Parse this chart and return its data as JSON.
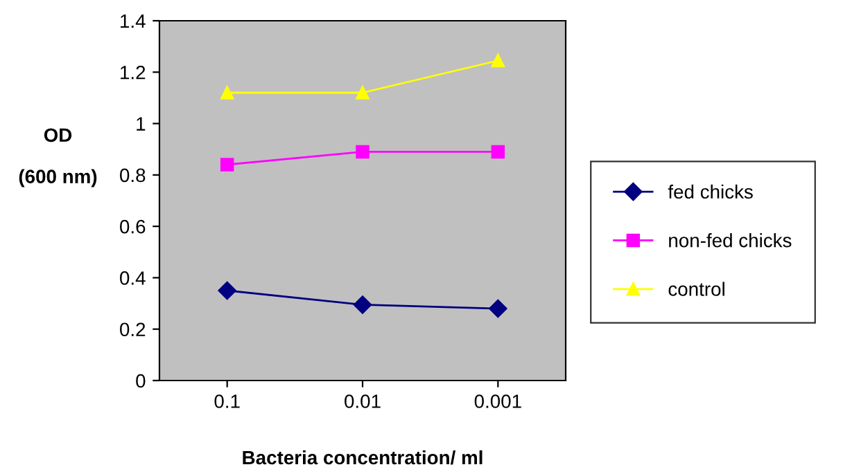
{
  "chart_data": {
    "type": "line",
    "xlabel": "Bacteria concentration/ ml",
    "ylabel": "OD\n\n(600 nm)",
    "categories": [
      "0.1",
      "0.01",
      "0.001"
    ],
    "series": [
      {
        "name": "fed chicks",
        "color": "#000080",
        "marker": "diamond",
        "values": [
          0.35,
          0.295,
          0.28
        ]
      },
      {
        "name": "non-fed chicks",
        "color": "#ff00ff",
        "marker": "square",
        "values": [
          0.84,
          0.89,
          0.89
        ]
      },
      {
        "name": "control",
        "color": "#ffff00",
        "marker": "triangle",
        "values": [
          1.12,
          1.12,
          1.245
        ]
      }
    ],
    "ylim": [
      0,
      1.4
    ],
    "yticks": [
      0,
      0.2,
      0.4,
      0.6,
      0.8,
      1,
      1.2,
      1.4
    ],
    "grid": false,
    "legend": "right"
  }
}
